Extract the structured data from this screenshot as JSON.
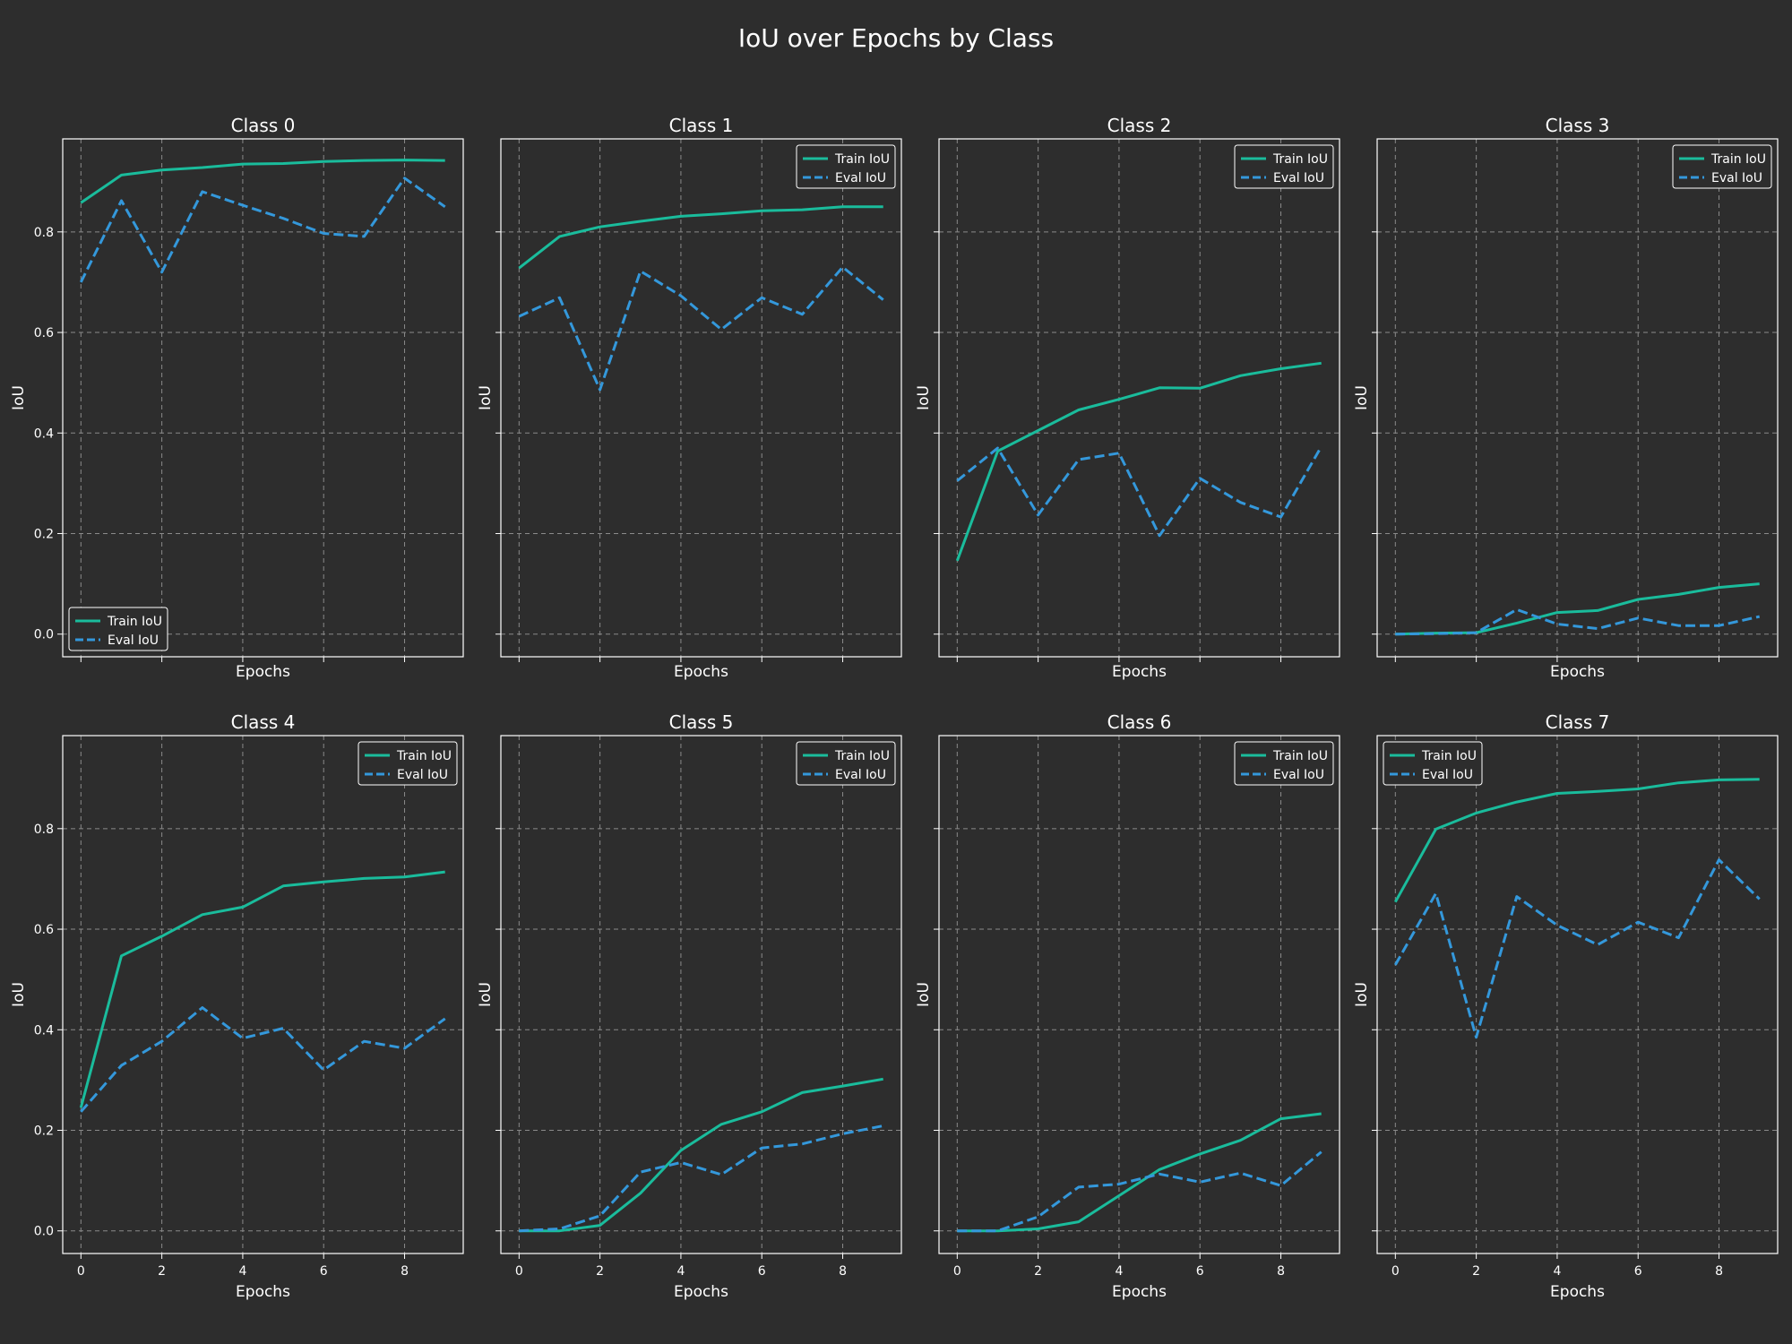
{
  "title": "IoU over Epochs by Class",
  "colors": {
    "background": "#2d2d2d",
    "train": "#1abc9c",
    "eval": "#3498db",
    "text": "#ffffff",
    "grid": "#8a8a8a"
  },
  "legend_labels": {
    "train": "Train IoU",
    "eval": "Eval IoU"
  },
  "chart_data": [
    {
      "type": "line",
      "title": "Class 0",
      "xlabel": "Epochs",
      "ylabel": "IoU",
      "xlim": [
        -0.45,
        9.45
      ],
      "ylim": [
        -0.045,
        0.985
      ],
      "xticks": [
        "0",
        "2",
        "4",
        "6",
        "8"
      ],
      "yticks": [
        "0.0",
        "0.2",
        "0.4",
        "0.6",
        "0.8"
      ],
      "show_xticklabels": false,
      "legend": "lower left",
      "grid": true,
      "x": [
        0,
        1,
        2,
        3,
        4,
        5,
        6,
        7,
        8,
        9
      ],
      "series": [
        {
          "name": "Train IoU",
          "style": "solid",
          "values": [
            0.858,
            0.913,
            0.923,
            0.928,
            0.935,
            0.936,
            0.94,
            0.942,
            0.943,
            0.942
          ]
        },
        {
          "name": "Eval IoU",
          "style": "dashed",
          "values": [
            0.7,
            0.862,
            0.72,
            0.88,
            0.853,
            0.827,
            0.797,
            0.791,
            0.907,
            0.85
          ]
        }
      ]
    },
    {
      "type": "line",
      "title": "Class 1",
      "xlabel": "Epochs",
      "ylabel": "IoU",
      "xlim": [
        -0.45,
        9.45
      ],
      "ylim": [
        -0.045,
        0.985
      ],
      "xticks": [
        "0",
        "2",
        "4",
        "6",
        "8"
      ],
      "yticks": [
        "0.0",
        "0.2",
        "0.4",
        "0.6",
        "0.8"
      ],
      "show_xticklabels": false,
      "legend": "upper right",
      "grid": true,
      "x": [
        0,
        1,
        2,
        3,
        4,
        5,
        6,
        7,
        8,
        9
      ],
      "series": [
        {
          "name": "Train IoU",
          "style": "solid",
          "values": [
            0.728,
            0.791,
            0.81,
            0.821,
            0.831,
            0.836,
            0.842,
            0.844,
            0.85,
            0.85
          ]
        },
        {
          "name": "Eval IoU",
          "style": "dashed",
          "values": [
            0.632,
            0.669,
            0.486,
            0.722,
            0.673,
            0.606,
            0.669,
            0.636,
            0.73,
            0.665
          ]
        }
      ]
    },
    {
      "type": "line",
      "title": "Class 2",
      "xlabel": "Epochs",
      "ylabel": "IoU",
      "xlim": [
        -0.45,
        9.45
      ],
      "ylim": [
        -0.045,
        0.985
      ],
      "xticks": [
        "0",
        "2",
        "4",
        "6",
        "8"
      ],
      "yticks": [
        "0.0",
        "0.2",
        "0.4",
        "0.6",
        "0.8"
      ],
      "show_xticklabels": false,
      "legend": "upper right",
      "grid": true,
      "x": [
        0,
        1,
        2,
        3,
        4,
        5,
        6,
        7,
        8,
        9
      ],
      "series": [
        {
          "name": "Train IoU",
          "style": "solid",
          "values": [
            0.146,
            0.364,
            0.405,
            0.446,
            0.467,
            0.49,
            0.489,
            0.514,
            0.528,
            0.539
          ]
        },
        {
          "name": "Eval IoU",
          "style": "dashed",
          "values": [
            0.305,
            0.37,
            0.237,
            0.347,
            0.36,
            0.196,
            0.31,
            0.262,
            0.233,
            0.373
          ]
        }
      ]
    },
    {
      "type": "line",
      "title": "Class 3",
      "xlabel": "Epochs",
      "ylabel": "IoU",
      "xlim": [
        -0.45,
        9.45
      ],
      "ylim": [
        -0.045,
        0.985
      ],
      "xticks": [
        "0",
        "2",
        "4",
        "6",
        "8"
      ],
      "yticks": [
        "0.0",
        "0.2",
        "0.4",
        "0.6",
        "0.8"
      ],
      "show_xticklabels": false,
      "legend": "upper right",
      "grid": true,
      "x": [
        0,
        1,
        2,
        3,
        4,
        5,
        6,
        7,
        8,
        9
      ],
      "series": [
        {
          "name": "Train IoU",
          "style": "solid",
          "values": [
            0.0,
            0.002,
            0.003,
            0.022,
            0.043,
            0.047,
            0.069,
            0.079,
            0.093,
            0.1
          ]
        },
        {
          "name": "Eval IoU",
          "style": "dashed",
          "values": [
            0.0,
            0.001,
            0.003,
            0.049,
            0.02,
            0.011,
            0.032,
            0.017,
            0.017,
            0.035
          ]
        }
      ]
    },
    {
      "type": "line",
      "title": "Class 4",
      "xlabel": "Epochs",
      "ylabel": "IoU",
      "xlim": [
        -0.45,
        9.45
      ],
      "ylim": [
        -0.045,
        0.985
      ],
      "xticks": [
        "0",
        "2",
        "4",
        "6",
        "8"
      ],
      "yticks": [
        "0.0",
        "0.2",
        "0.4",
        "0.6",
        "0.8"
      ],
      "show_xticklabels": true,
      "legend": "upper right",
      "grid": true,
      "x": [
        0,
        1,
        2,
        3,
        4,
        5,
        6,
        7,
        8,
        9
      ],
      "series": [
        {
          "name": "Train IoU",
          "style": "solid",
          "values": [
            0.245,
            0.547,
            0.586,
            0.629,
            0.644,
            0.686,
            0.694,
            0.701,
            0.704,
            0.714
          ]
        },
        {
          "name": "Eval IoU",
          "style": "dashed",
          "values": [
            0.237,
            0.329,
            0.377,
            0.444,
            0.383,
            0.403,
            0.32,
            0.377,
            0.363,
            0.422
          ]
        }
      ]
    },
    {
      "type": "line",
      "title": "Class 5",
      "xlabel": "Epochs",
      "ylabel": "IoU",
      "xlim": [
        -0.45,
        9.45
      ],
      "ylim": [
        -0.045,
        0.985
      ],
      "xticks": [
        "0",
        "2",
        "4",
        "6",
        "8"
      ],
      "yticks": [
        "0.0",
        "0.2",
        "0.4",
        "0.6",
        "0.8"
      ],
      "show_xticklabels": true,
      "legend": "upper right",
      "grid": true,
      "x": [
        0,
        1,
        2,
        3,
        4,
        5,
        6,
        7,
        8,
        9
      ],
      "series": [
        {
          "name": "Train IoU",
          "style": "solid",
          "values": [
            0.0,
            0.0,
            0.011,
            0.075,
            0.16,
            0.212,
            0.237,
            0.275,
            0.288,
            0.302
          ]
        },
        {
          "name": "Eval IoU",
          "style": "dashed",
          "values": [
            0.0,
            0.004,
            0.03,
            0.117,
            0.136,
            0.112,
            0.165,
            0.173,
            0.193,
            0.209
          ]
        }
      ]
    },
    {
      "type": "line",
      "title": "Class 6",
      "xlabel": "Epochs",
      "ylabel": "IoU",
      "xlim": [
        -0.45,
        9.45
      ],
      "ylim": [
        -0.045,
        0.985
      ],
      "xticks": [
        "0",
        "2",
        "4",
        "6",
        "8"
      ],
      "yticks": [
        "0.0",
        "0.2",
        "0.4",
        "0.6",
        "0.8"
      ],
      "show_xticklabels": true,
      "legend": "upper right",
      "grid": true,
      "x": [
        0,
        1,
        2,
        3,
        4,
        5,
        6,
        7,
        8,
        9
      ],
      "series": [
        {
          "name": "Train IoU",
          "style": "solid",
          "values": [
            0.0,
            0.0,
            0.004,
            0.018,
            0.07,
            0.122,
            0.153,
            0.18,
            0.223,
            0.233
          ]
        },
        {
          "name": "Eval IoU",
          "style": "dashed",
          "values": [
            0.0,
            0.0,
            0.028,
            0.087,
            0.093,
            0.113,
            0.097,
            0.115,
            0.09,
            0.157
          ]
        }
      ]
    },
    {
      "type": "line",
      "title": "Class 7",
      "xlabel": "Epochs",
      "ylabel": "IoU",
      "xlim": [
        -0.45,
        9.45
      ],
      "ylim": [
        -0.045,
        0.985
      ],
      "xticks": [
        "0",
        "2",
        "4",
        "6",
        "8"
      ],
      "yticks": [
        "0.0",
        "0.2",
        "0.4",
        "0.6",
        "0.8"
      ],
      "show_xticklabels": true,
      "legend": "upper left",
      "grid": true,
      "x": [
        0,
        1,
        2,
        3,
        4,
        5,
        6,
        7,
        8,
        9
      ],
      "series": [
        {
          "name": "Train IoU",
          "style": "solid",
          "values": [
            0.654,
            0.799,
            0.831,
            0.853,
            0.87,
            0.874,
            0.879,
            0.891,
            0.897,
            0.898
          ]
        },
        {
          "name": "Eval IoU",
          "style": "dashed",
          "values": [
            0.529,
            0.671,
            0.385,
            0.665,
            0.608,
            0.569,
            0.614,
            0.583,
            0.738,
            0.66
          ]
        }
      ]
    }
  ]
}
